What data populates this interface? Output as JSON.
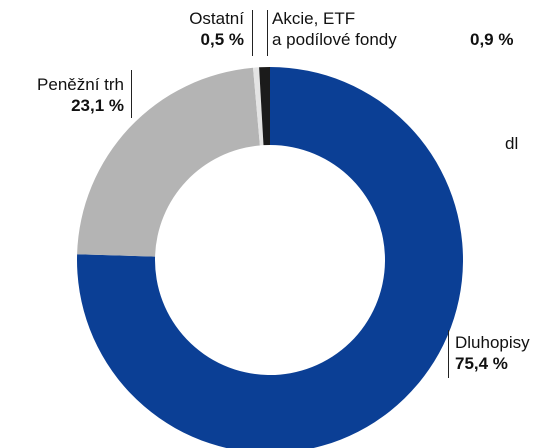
{
  "chart_data": {
    "type": "pie",
    "donut": true,
    "categories": [
      "Dluhopisy",
      "Peněžní trh",
      "Ostatní",
      "Akcie, ETF\na podílové fondy"
    ],
    "values": [
      75.4,
      23.1,
      0.5,
      0.9
    ],
    "value_labels": [
      "75,4 %",
      "23,1 %",
      "0,5 %",
      "0,9 %"
    ],
    "colors": [
      "#0b3f95",
      "#b4b4b4",
      "#e4e4e4",
      "#1b1b1b"
    ],
    "annotation": "dl"
  }
}
